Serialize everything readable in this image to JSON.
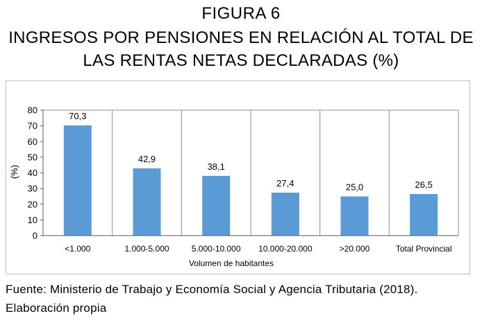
{
  "figure": {
    "label": "FIGURA 6",
    "title_line1": "INGRESOS POR PENSIONES EN RELACIÓN AL TOTAL DE",
    "title_line2": "LAS RENTAS NETAS DECLARADAS (%)"
  },
  "chart_data": {
    "type": "bar",
    "categories": [
      "<1.000",
      "1.000-5.000",
      "5.000-10.000",
      "10.000-20.000",
      ">20.000",
      "Total Provincial"
    ],
    "values": [
      70.3,
      42.9,
      38.1,
      27.4,
      25.0,
      26.5
    ],
    "data_labels": [
      "70,3",
      "42,9",
      "38,1",
      "27,4",
      "25,0",
      "26,5"
    ],
    "xlabel": "Volumen de  habitantes",
    "ylabel": "(%)",
    "ylim": [
      0,
      80
    ],
    "yticks": [
      0,
      10,
      20,
      30,
      40,
      50,
      60,
      70,
      80
    ],
    "bar_color": "#5b9bd5",
    "grid": "vertical category separators",
    "legend": "none"
  },
  "source": {
    "line1": "Fuente: Ministerio de Trabajo y Economía Social y Agencia Tributaria (2018).",
    "line2": "Elaboración propia"
  }
}
